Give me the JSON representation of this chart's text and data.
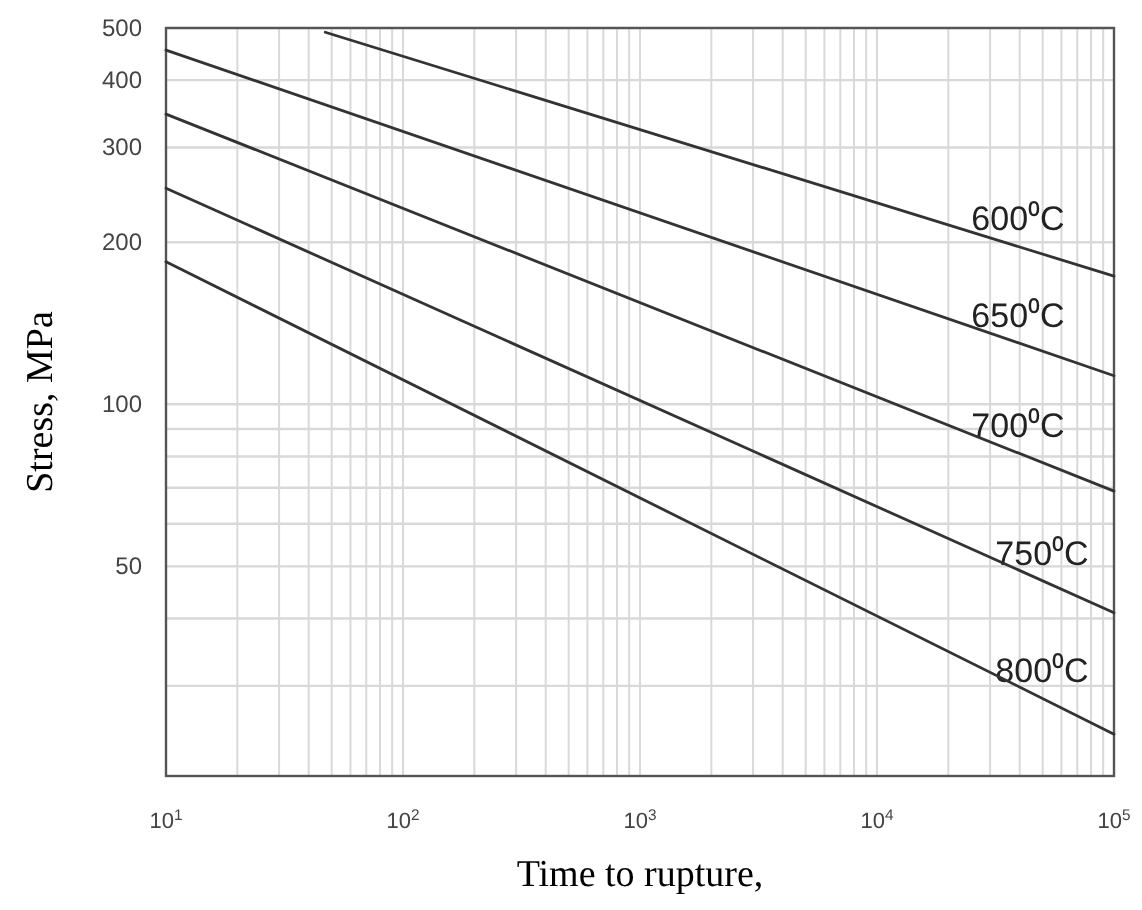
{
  "chart_data": {
    "type": "line",
    "xlabel": "Time to rupture,",
    "ylabel": "Stress, MPa",
    "log": "xy",
    "grid": true,
    "marker": "none",
    "line_style": "solid",
    "xlim": [
      10,
      100000
    ],
    "ylim": [
      20.4,
      500
    ],
    "xticks": [
      {
        "value": 10,
        "label": "10$^{1}$"
      },
      {
        "value": 20,
        "label": null
      },
      {
        "value": 30,
        "label": null
      },
      {
        "value": 40,
        "label": null
      },
      {
        "value": 50,
        "label": null
      },
      {
        "value": 60,
        "label": null
      },
      {
        "value": 70,
        "label": null
      },
      {
        "value": 80,
        "label": null
      },
      {
        "value": 90,
        "label": null
      },
      {
        "value": 100,
        "label": "10$^{2}$"
      },
      {
        "value": 200,
        "label": null
      },
      {
        "value": 300,
        "label": null
      },
      {
        "value": 400,
        "label": null
      },
      {
        "value": 500,
        "label": null
      },
      {
        "value": 600,
        "label": null
      },
      {
        "value": 700,
        "label": null
      },
      {
        "value": 800,
        "label": null
      },
      {
        "value": 900,
        "label": null
      },
      {
        "value": 1000,
        "label": "10$^{3}$"
      },
      {
        "value": 2000,
        "label": null
      },
      {
        "value": 3000,
        "label": null
      },
      {
        "value": 4000,
        "label": null
      },
      {
        "value": 5000,
        "label": null
      },
      {
        "value": 6000,
        "label": null
      },
      {
        "value": 7000,
        "label": null
      },
      {
        "value": 8000,
        "label": null
      },
      {
        "value": 9000,
        "label": null
      },
      {
        "value": 10000,
        "label": "10$^{4}$"
      },
      {
        "value": 20000,
        "label": null
      },
      {
        "value": 30000,
        "label": null
      },
      {
        "value": 40000,
        "label": null
      },
      {
        "value": 50000,
        "label": null
      },
      {
        "value": 60000,
        "label": null
      },
      {
        "value": 70000,
        "label": null
      },
      {
        "value": 80000,
        "label": null
      },
      {
        "value": 90000,
        "label": null
      },
      {
        "value": 100000,
        "label": "10$^{5}$"
      }
    ],
    "yticks": [
      {
        "value": 30,
        "label": null
      },
      {
        "value": 40,
        "label": null
      },
      50,
      {
        "value": 60,
        "label": null
      },
      {
        "value": 70,
        "label": null
      },
      {
        "value": 80,
        "label": null
      },
      {
        "value": 90,
        "label": null
      },
      100,
      200,
      300,
      400,
      500
    ],
    "series": [
      {
        "name": "600⁰C",
        "color": "#333333",
        "x": [
          47,
          100000
        ],
        "values": [
          491,
          173
        ]
      },
      {
        "name": "650⁰C",
        "color": "#333333",
        "x": [
          10,
          100000
        ],
        "values": [
          455,
          113
        ]
      },
      {
        "name": "700⁰C",
        "color": "#333333",
        "x": [
          10,
          100000
        ],
        "values": [
          346,
          69
        ]
      },
      {
        "name": "750⁰C",
        "color": "#333333",
        "x": [
          10,
          100000
        ],
        "values": [
          252,
          41
        ]
      },
      {
        "name": "800⁰C",
        "color": "#333333",
        "x": [
          10,
          100000
        ],
        "values": [
          184,
          24.4
        ]
      }
    ]
  }
}
